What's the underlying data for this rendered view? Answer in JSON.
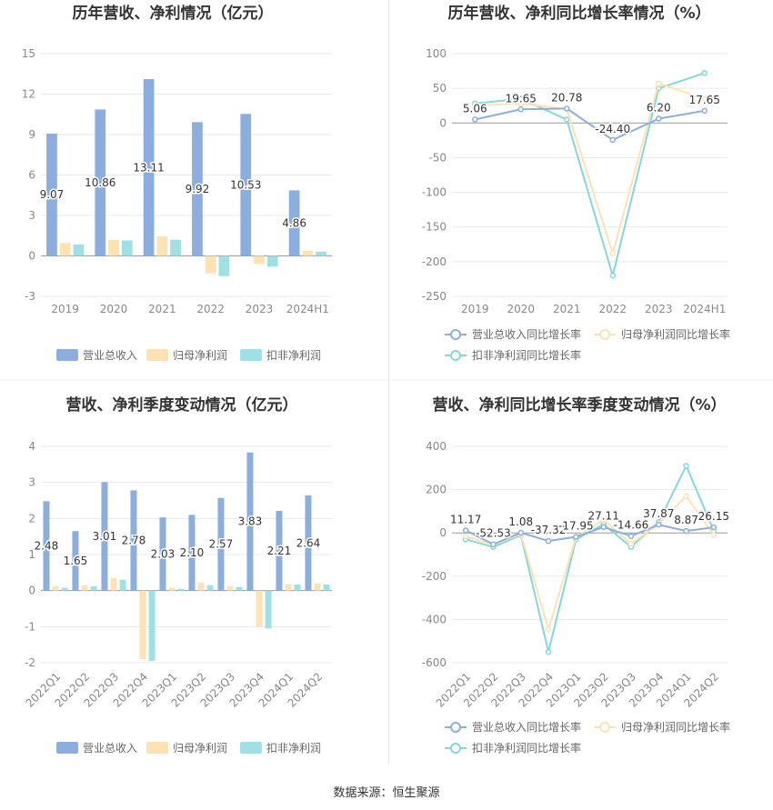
{
  "colors": {
    "revenue": "#8caede",
    "net_profit": "#fde2b4",
    "deducted_profit": "#9ee0e3",
    "line_revenue": "#8caede",
    "line_net_profit": "#fde2b4",
    "line_deducted_profit": "#84d7db",
    "grid": "#e6e8ef",
    "axis_text": "#888888",
    "title": "#333333"
  },
  "footer": {
    "source": "数据来源：恒生聚源"
  },
  "chart_data": [
    {
      "id": "annual-bar",
      "type": "bar",
      "title": "历年营收、净利情况（亿元）",
      "categories": [
        "2019",
        "2020",
        "2021",
        "2022",
        "2023",
        "2024H1"
      ],
      "series": [
        {
          "name": "营业总收入",
          "values": [
            9.07,
            10.86,
            13.11,
            9.92,
            10.53,
            4.86
          ]
        },
        {
          "name": "归母净利润",
          "values": [
            0.95,
            1.2,
            1.45,
            -1.3,
            -0.6,
            0.38
          ]
        },
        {
          "name": "扣非净利润",
          "values": [
            0.85,
            1.15,
            1.2,
            -1.5,
            -0.8,
            0.32
          ]
        }
      ],
      "data_labels": [
        "9.07",
        "10.86",
        "13.11",
        "9.92",
        "10.53",
        "4.86"
      ],
      "yticks": [
        "15",
        "12",
        "9",
        "6",
        "3",
        "0",
        "-3"
      ],
      "ylim": [
        -3,
        15
      ],
      "legend": [
        "营业总收入",
        "归母净利润",
        "扣非净利润"
      ]
    },
    {
      "id": "annual-line",
      "type": "line",
      "title": "历年营收、净利同比增长率情况（%）",
      "categories": [
        "2019",
        "2020",
        "2021",
        "2022",
        "2023",
        "2024H1"
      ],
      "series": [
        {
          "name": "营业总收入同比增长率",
          "values": [
            5.06,
            19.65,
            20.78,
            -24.4,
            6.2,
            17.65
          ]
        },
        {
          "name": "归母净利润同比增长率",
          "values": [
            25,
            28,
            20,
            -188,
            57,
            35
          ]
        },
        {
          "name": "扣非净利润同比增长率",
          "values": [
            28,
            35,
            5,
            -220,
            50,
            72
          ]
        }
      ],
      "data_labels": [
        "5.06",
        "19.65",
        "20.78",
        "-24.40",
        "6.20",
        "17.65"
      ],
      "yticks": [
        "100",
        "50",
        "0",
        "-50",
        "-100",
        "-150",
        "-200",
        "-250"
      ],
      "ylim": [
        -250,
        100
      ],
      "legend": [
        "营业总收入同比增长率",
        "归母净利润同比增长率",
        "扣非净利润同比增长率"
      ]
    },
    {
      "id": "quarter-bar",
      "type": "bar",
      "title": "营收、净利季度变动情况（亿元）",
      "categories": [
        "2022Q1",
        "2022Q2",
        "2022Q3",
        "2022Q4",
        "2023Q1",
        "2023Q2",
        "2023Q3",
        "2023Q4",
        "2024Q1",
        "2024Q2"
      ],
      "series": [
        {
          "name": "营业总收入",
          "values": [
            2.48,
            1.65,
            3.01,
            2.78,
            2.03,
            2.1,
            2.57,
            3.83,
            2.21,
            2.64
          ]
        },
        {
          "name": "归母净利润",
          "values": [
            0.12,
            0.15,
            0.35,
            -1.9,
            0.08,
            0.22,
            0.12,
            -1.0,
            0.18,
            0.2
          ]
        },
        {
          "name": "扣非净利润",
          "values": [
            0.08,
            0.12,
            0.3,
            -1.95,
            0.05,
            0.15,
            0.1,
            -1.05,
            0.17,
            0.17
          ]
        }
      ],
      "data_labels": [
        "2.48",
        "1.65",
        "3.01",
        "2.78",
        "2.03",
        "2.10",
        "2.57",
        "3.83",
        "2.21",
        "2.64"
      ],
      "yticks": [
        "4",
        "3",
        "2",
        "1",
        "0",
        "-1",
        "-2"
      ],
      "ylim": [
        -2,
        4
      ],
      "legend": [
        "营业总收入",
        "归母净利润",
        "扣非净利润"
      ]
    },
    {
      "id": "quarter-line",
      "type": "line",
      "title": "营收、净利同比增长率季度变动情况（%）",
      "categories": [
        "2022Q1",
        "2022Q2",
        "2022Q3",
        "2022Q4",
        "2023Q1",
        "2023Q2",
        "2023Q3",
        "2023Q4",
        "2024Q1",
        "2024Q2"
      ],
      "series": [
        {
          "name": "营业总收入同比增长率",
          "values": [
            11.17,
            -52.53,
            1.08,
            -37.32,
            -17.95,
            27.11,
            -14.66,
            37.87,
            8.87,
            26.15
          ]
        },
        {
          "name": "归母净利润同比增长率",
          "values": [
            -15,
            -55,
            -5,
            -445,
            -20,
            60,
            -50,
            40,
            170,
            -10
          ]
        },
        {
          "name": "扣非净利润同比增长率",
          "values": [
            -30,
            -65,
            -10,
            -550,
            -30,
            40,
            -65,
            50,
            310,
            10
          ]
        }
      ],
      "data_labels": [
        "11.17",
        "-52.53",
        "1.08",
        "-37.32",
        "-17.95",
        "27.11",
        "-14.66",
        "37.87",
        "8.87",
        "26.15"
      ],
      "yticks": [
        "400",
        "200",
        "0",
        "-200",
        "-400",
        "-600"
      ],
      "ylim": [
        -600,
        400
      ],
      "legend": [
        "营业总收入同比增长率",
        "归母净利润同比增长率",
        "扣非净利润同比增长率"
      ]
    }
  ]
}
